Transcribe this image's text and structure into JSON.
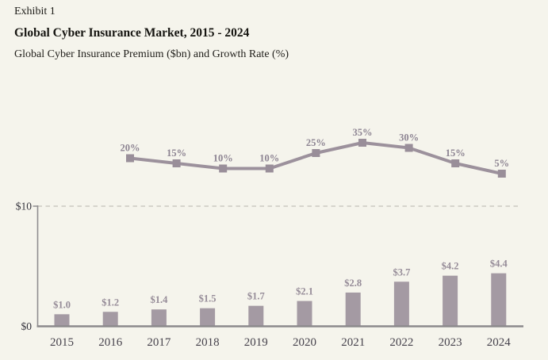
{
  "header": {
    "exhibit": "Exhibit 1",
    "title": "Global Cyber Insurance Market, 2015 - 2024",
    "subtitle": "Global Cyber Insurance Premium ($bn) and Growth Rate (%)"
  },
  "chart_data": {
    "type": "bar+line",
    "title": "Global Cyber Insurance Market, 2015 - 2024",
    "subtitle": "Global Cyber Insurance Premium ($bn) and Growth Rate (%)",
    "categories": [
      "2015",
      "2016",
      "2017",
      "2018",
      "2019",
      "2020",
      "2021",
      "2022",
      "2023",
      "2024"
    ],
    "series": [
      {
        "name": "Global Cyber Insurance Premium ($bn)",
        "type": "bar",
        "values": [
          1.0,
          1.2,
          1.4,
          1.5,
          1.7,
          2.1,
          2.8,
          3.7,
          4.2,
          4.4
        ],
        "labels": [
          "$1.0",
          "$1.2",
          "$1.4",
          "$1.5",
          "$1.7",
          "$2.1",
          "$2.8",
          "$3.7",
          "$4.2",
          "$4.4"
        ]
      },
      {
        "name": "Growth Rate (%)",
        "type": "line",
        "categories": [
          "2016",
          "2017",
          "2018",
          "2019",
          "2020",
          "2021",
          "2022",
          "2023",
          "2024"
        ],
        "values": [
          20,
          15,
          10,
          10,
          25,
          35,
          30,
          15,
          5
        ],
        "labels": [
          "20%",
          "15%",
          "10%",
          "10%",
          "25%",
          "35%",
          "30%",
          "15%",
          "5%"
        ]
      }
    ],
    "yaxis": {
      "tick_top": "$10",
      "tick_bottom": "$0",
      "range": [
        0,
        10
      ],
      "gridline_value": 10,
      "gridline_style": "dashed"
    },
    "legend": "none",
    "colors": {
      "background": "#f5f4ec",
      "bar_fill": "#a49aa3",
      "line_stroke": "#9c919c",
      "marker_fill": "#998e99",
      "bar_value_label": "#968c98",
      "growth_label": "#8d8492",
      "year_label": "#46424c",
      "axis_value_label": "#34333c",
      "axis_line": "#8f8d8f",
      "baseline": "#8c8a8c",
      "gridline": "#cbc9c1"
    }
  }
}
